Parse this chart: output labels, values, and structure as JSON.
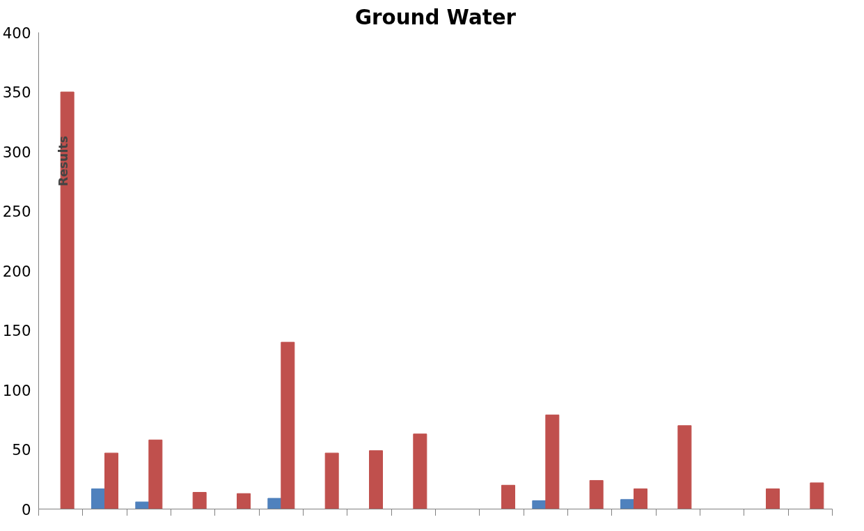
{
  "chart_data": {
    "type": "bar",
    "title": "Ground Water",
    "ylabel": "Results",
    "categories": [
      null,
      null,
      null,
      null,
      null,
      null,
      null,
      null,
      null,
      null,
      null,
      null,
      null,
      null,
      null,
      null,
      null,
      null
    ],
    "series": [
      {
        "color": "#4f81bd",
        "values": [
          null,
          17,
          6,
          null,
          null,
          9,
          null,
          null,
          null,
          null,
          null,
          7,
          null,
          8,
          null,
          null,
          null,
          null
        ]
      },
      {
        "color": "#c0504d",
        "values": [
          350,
          47,
          58,
          14,
          13,
          140,
          47,
          49,
          63,
          null,
          20,
          79,
          24,
          17,
          70,
          null,
          17,
          22
        ]
      }
    ],
    "ylim": [
      0,
      400
    ],
    "yticks": [
      0,
      50,
      100,
      150,
      200,
      250,
      300,
      350,
      400
    ],
    "grid": false,
    "tick_labels": "y"
  }
}
